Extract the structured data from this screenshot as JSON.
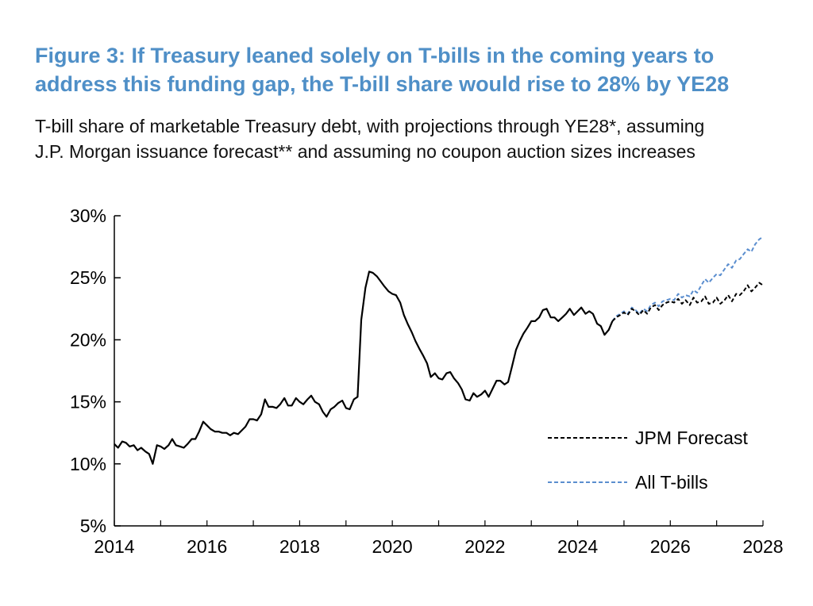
{
  "title_line1": "Figure 3: If Treasury leaned solely on T-bills in the coming years to",
  "title_line2": "address this funding gap, the T-bill share would rise to 28% by YE28",
  "subtitle_line1": "T-bill share of marketable Treasury debt, with projections through YE28*, assuming",
  "subtitle_line2": "J.P. Morgan issuance forecast** and assuming no coupon auction sizes increases",
  "chart_data": {
    "type": "line",
    "xlim": [
      2014,
      2028
    ],
    "ylim": [
      5,
      30
    ],
    "x_ticks": [
      2014,
      2016,
      2018,
      2020,
      2022,
      2024,
      2026,
      2028
    ],
    "x_tick_labels": [
      "2014",
      "2016",
      "2018",
      "2020",
      "2022",
      "2024",
      "2026",
      "2028"
    ],
    "y_ticks": [
      5,
      10,
      15,
      20,
      25,
      30
    ],
    "y_tick_labels": [
      "5%",
      "10%",
      "15%",
      "20%",
      "25%",
      "30%"
    ],
    "grid": false,
    "legend_position": "bottom-right",
    "series": [
      {
        "key": "history",
        "color": "#000000",
        "dashed": false,
        "x": [
          2014.0,
          2014.08,
          2014.17,
          2014.25,
          2014.33,
          2014.42,
          2014.5,
          2014.58,
          2014.67,
          2014.75,
          2014.83,
          2014.92,
          2015.0,
          2015.08,
          2015.17,
          2015.25,
          2015.33,
          2015.42,
          2015.5,
          2015.58,
          2015.67,
          2015.75,
          2015.83,
          2015.92,
          2016.0,
          2016.08,
          2016.17,
          2016.25,
          2016.33,
          2016.42,
          2016.5,
          2016.58,
          2016.67,
          2016.75,
          2016.83,
          2016.92,
          2017.0,
          2017.08,
          2017.17,
          2017.25,
          2017.33,
          2017.42,
          2017.5,
          2017.58,
          2017.67,
          2017.75,
          2017.83,
          2017.92,
          2018.0,
          2018.08,
          2018.17,
          2018.25,
          2018.33,
          2018.42,
          2018.5,
          2018.58,
          2018.67,
          2018.75,
          2018.83,
          2018.92,
          2019.0,
          2019.08,
          2019.17,
          2019.25,
          2019.33,
          2019.42,
          2019.5,
          2019.58,
          2019.67,
          2019.75,
          2019.83,
          2019.92,
          2020.0,
          2020.08,
          2020.17,
          2020.25,
          2020.33,
          2020.42,
          2020.5,
          2020.58,
          2020.67,
          2020.75,
          2020.83,
          2020.92,
          2021.0,
          2021.08,
          2021.17,
          2021.25,
          2021.33,
          2021.42,
          2021.5,
          2021.58,
          2021.67,
          2021.75,
          2021.83,
          2021.92,
          2022.0,
          2022.08,
          2022.17,
          2022.25,
          2022.33,
          2022.42,
          2022.5,
          2022.58,
          2022.67,
          2022.75,
          2022.83,
          2022.92,
          2023.0,
          2023.08,
          2023.17,
          2023.25,
          2023.33,
          2023.42,
          2023.5,
          2023.58,
          2023.67,
          2023.75,
          2023.83,
          2023.92,
          2024.0,
          2024.08,
          2024.17,
          2024.25,
          2024.33,
          2024.42,
          2024.5,
          2024.58,
          2024.67,
          2024.75
        ],
        "y": [
          11.6,
          11.3,
          11.8,
          11.7,
          11.4,
          11.5,
          11.1,
          11.3,
          11.0,
          10.8,
          10.0,
          11.5,
          11.4,
          11.2,
          11.5,
          12.0,
          11.5,
          11.4,
          11.3,
          11.6,
          12.0,
          12.0,
          12.6,
          13.4,
          13.1,
          12.8,
          12.6,
          12.6,
          12.5,
          12.5,
          12.3,
          12.5,
          12.4,
          12.7,
          13.0,
          13.6,
          13.6,
          13.5,
          14.0,
          15.2,
          14.6,
          14.6,
          14.5,
          14.8,
          15.3,
          14.7,
          14.7,
          15.3,
          15.0,
          14.8,
          15.2,
          15.5,
          15.0,
          14.8,
          14.2,
          13.8,
          14.4,
          14.6,
          14.9,
          15.1,
          14.5,
          14.4,
          15.2,
          15.4,
          21.6,
          24.2,
          25.5,
          25.4,
          25.1,
          24.7,
          24.3,
          23.9,
          23.7,
          23.6,
          23.0,
          22.0,
          21.3,
          20.6,
          19.9,
          19.3,
          18.7,
          18.1,
          17.0,
          17.3,
          16.9,
          16.8,
          17.3,
          17.4,
          16.9,
          16.5,
          16.0,
          15.2,
          15.1,
          15.7,
          15.4,
          15.6,
          15.9,
          15.4,
          16.1,
          16.7,
          16.7,
          16.4,
          16.6,
          17.8,
          19.2,
          19.9,
          20.5,
          21.0,
          21.5,
          21.5,
          21.8,
          22.4,
          22.5,
          21.8,
          21.8,
          21.5,
          21.8,
          22.1,
          22.5,
          22.0,
          22.3,
          22.6,
          22.1,
          22.3,
          22.1,
          21.3,
          21.1,
          20.4,
          20.8,
          21.5
        ]
      },
      {
        "key": "jpm",
        "name": "JPM Forecast",
        "color": "#000000",
        "dashed": true,
        "x": [
          2024.75,
          2024.83,
          2024.92,
          2025.0,
          2025.08,
          2025.17,
          2025.25,
          2025.33,
          2025.42,
          2025.5,
          2025.58,
          2025.67,
          2025.75,
          2025.83,
          2025.92,
          2026.0,
          2026.08,
          2026.17,
          2026.25,
          2026.33,
          2026.42,
          2026.5,
          2026.58,
          2026.67,
          2026.75,
          2026.83,
          2026.92,
          2027.0,
          2027.08,
          2027.17,
          2027.25,
          2027.33,
          2027.42,
          2027.5,
          2027.58,
          2027.67,
          2027.75,
          2027.83,
          2027.92,
          2028.0
        ],
        "y": [
          21.5,
          21.8,
          22.0,
          22.2,
          22.0,
          22.5,
          22.3,
          22.0,
          22.4,
          22.1,
          22.6,
          22.8,
          22.4,
          22.8,
          23.0,
          23.1,
          23.0,
          23.3,
          22.9,
          23.2,
          22.8,
          23.4,
          23.0,
          23.1,
          23.5,
          22.9,
          23.0,
          23.4,
          22.9,
          23.2,
          23.6,
          23.1,
          23.7,
          23.6,
          23.9,
          24.4,
          23.9,
          24.2,
          24.6,
          24.4
        ]
      },
      {
        "key": "tbills",
        "name": "All T-bills",
        "color": "#5b8ecf",
        "dashed": true,
        "x": [
          2024.75,
          2024.83,
          2024.92,
          2025.0,
          2025.08,
          2025.17,
          2025.25,
          2025.33,
          2025.42,
          2025.5,
          2025.58,
          2025.67,
          2025.75,
          2025.83,
          2025.92,
          2026.0,
          2026.08,
          2026.17,
          2026.25,
          2026.33,
          2026.42,
          2026.5,
          2026.58,
          2026.67,
          2026.75,
          2026.83,
          2026.92,
          2027.0,
          2027.08,
          2027.17,
          2027.25,
          2027.33,
          2027.42,
          2027.5,
          2027.58,
          2027.67,
          2027.75,
          2027.83,
          2027.92,
          2028.0
        ],
        "y": [
          21.5,
          21.9,
          22.1,
          22.3,
          22.1,
          22.6,
          22.4,
          22.1,
          22.5,
          22.3,
          22.8,
          23.0,
          22.7,
          23.1,
          23.2,
          23.3,
          23.2,
          23.7,
          23.4,
          23.6,
          23.5,
          24.0,
          23.8,
          24.4,
          24.9,
          24.6,
          25.0,
          25.3,
          25.2,
          25.7,
          26.1,
          25.8,
          26.4,
          26.5,
          26.9,
          27.3,
          27.1,
          27.7,
          28.1,
          28.3
        ]
      }
    ]
  }
}
